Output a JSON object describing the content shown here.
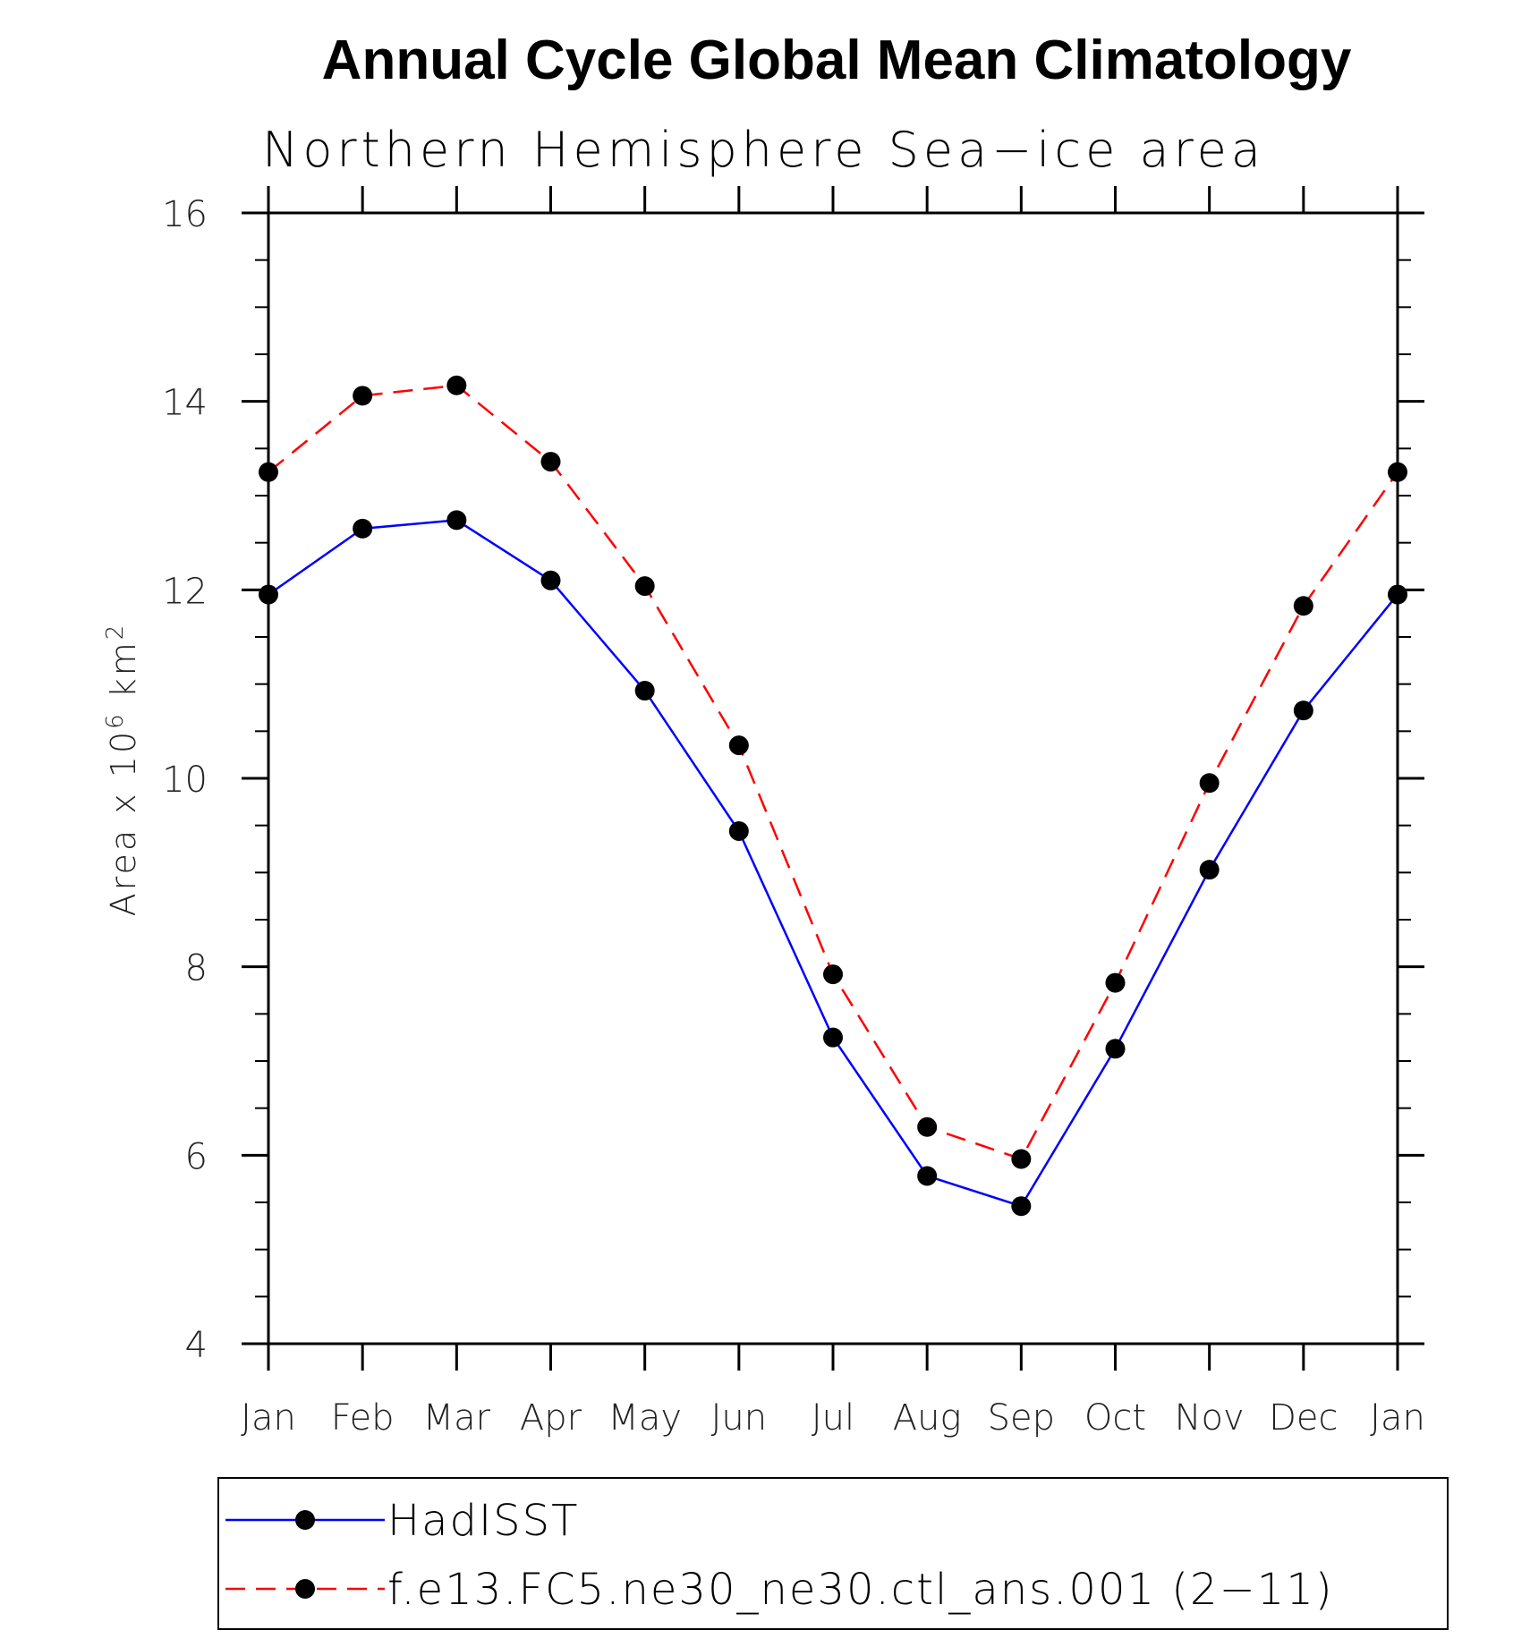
{
  "chart_data": {
    "type": "line",
    "title": "Annual Cycle Global Mean Climatology",
    "subtitle": "Northern Hemisphere Sea−ice area",
    "xlabel": "",
    "ylabel": {
      "text": "Area x 10",
      "superscript": "6",
      "unit": " km",
      "unit_superscript": "2"
    },
    "categories": [
      "Jan",
      "Feb",
      "Mar",
      "Apr",
      "May",
      "Jun",
      "Jul",
      "Aug",
      "Sep",
      "Oct",
      "Nov",
      "Dec",
      "Jan"
    ],
    "ylim": [
      4,
      16
    ],
    "yticks": [
      4,
      6,
      8,
      10,
      12,
      14,
      16
    ],
    "y_minor_step": 0.5,
    "grid": false,
    "legend_position": "bottom",
    "series": [
      {
        "name": "HadISST",
        "color": "#0000ff",
        "dash": false,
        "marker": "filled-circle",
        "values": [
          11.95,
          12.65,
          12.74,
          12.1,
          10.93,
          9.44,
          7.25,
          5.78,
          5.46,
          7.13,
          9.03,
          10.72,
          11.95
        ]
      },
      {
        "name": "f.e13.FC5.ne30_ne30.ctl_ans.001 (2−11)",
        "color": "#ff0000",
        "dash": true,
        "marker": "filled-circle",
        "values": [
          13.25,
          14.06,
          14.17,
          13.36,
          12.04,
          10.35,
          7.92,
          6.3,
          5.96,
          7.83,
          9.95,
          11.83,
          13.25
        ]
      }
    ]
  }
}
